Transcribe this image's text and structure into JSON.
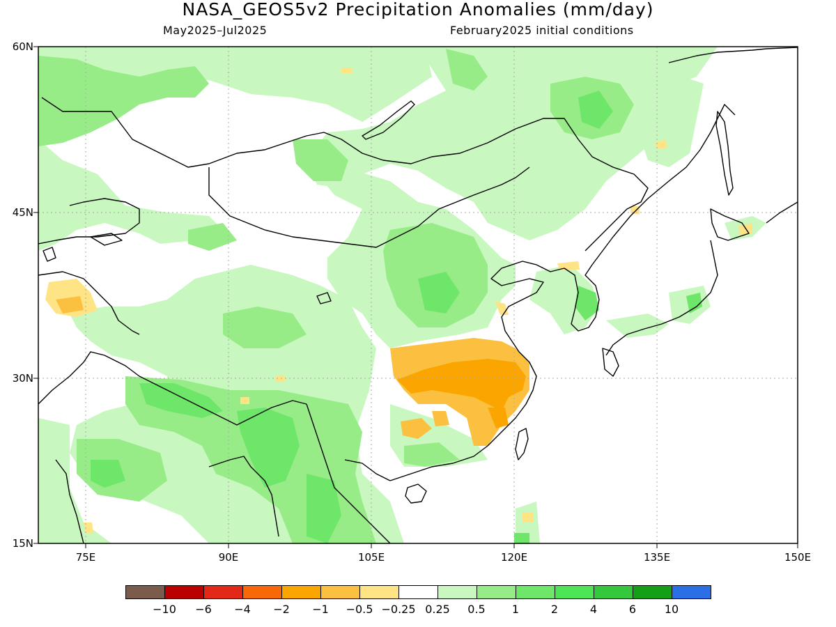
{
  "title": "NASA_GEOS5v2 Precipitation Anomalies (mm/day)",
  "subtitle_left": "May2025–Jul2025",
  "subtitle_right": "February2025 initial conditions",
  "lat_labels": [
    "60N",
    "45N",
    "30N",
    "15N"
  ],
  "lon_labels": [
    "75E",
    "90E",
    "105E",
    "120E",
    "135E",
    "150E"
  ],
  "colors": {
    "lc_1": "#7b5b4b",
    "lc_2": "#bb0000",
    "lc_3": "#e32818",
    "lc_4": "#f86808",
    "lc_5": "#fba600",
    "lc_6": "#fcc040",
    "lc_7": "#fee484",
    "lc_8": "#ffffff",
    "lc_9": "#c8f7c0",
    "lc_10": "#98ec88",
    "lc_11": "#6ee66a",
    "lc_12": "#4de456",
    "lc_13": "#36c83c",
    "lc_14": "#159f16",
    "lc_15": "#2a6fe5",
    "coastline": "#000000"
  },
  "legend_labels": [
    "−10",
    "−6",
    "−4",
    "−2",
    "−1",
    "−0.5",
    "−0.25",
    "0.25",
    "0.5",
    "1",
    "2",
    "4",
    "6",
    "10"
  ]
}
